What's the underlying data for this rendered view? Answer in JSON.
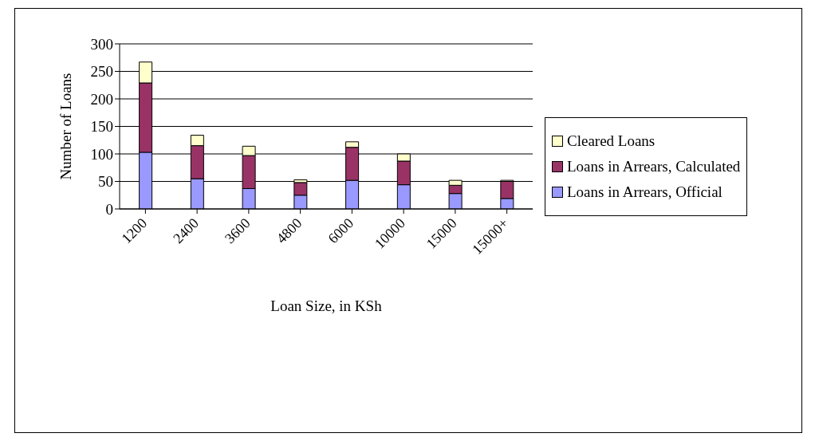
{
  "chart_data": {
    "type": "bar",
    "stacked": true,
    "xlabel": "Loan Size, in KSh",
    "ylabel": "Number of Loans",
    "categories": [
      "1200",
      "2400",
      "3600",
      "4800",
      "6000",
      "10000",
      "15000",
      "15000+"
    ],
    "series": [
      {
        "name": "Loans in Arrears, Official",
        "color": "#9999ff",
        "values": [
          103,
          55,
          37,
          25,
          52,
          44,
          28,
          19
        ]
      },
      {
        "name": "Loans in Arrears, Calculated",
        "color": "#993366",
        "values": [
          126,
          60,
          60,
          23,
          60,
          43,
          15,
          31
        ]
      },
      {
        "name": "Cleared Loans",
        "color": "#ffffcc",
        "values": [
          38,
          19,
          17,
          5,
          10,
          13,
          9,
          2
        ]
      }
    ],
    "ylim": [
      0,
      300
    ],
    "yticks": [
      0,
      50,
      100,
      150,
      200,
      250,
      300
    ],
    "grid": "y",
    "legend": "right"
  }
}
